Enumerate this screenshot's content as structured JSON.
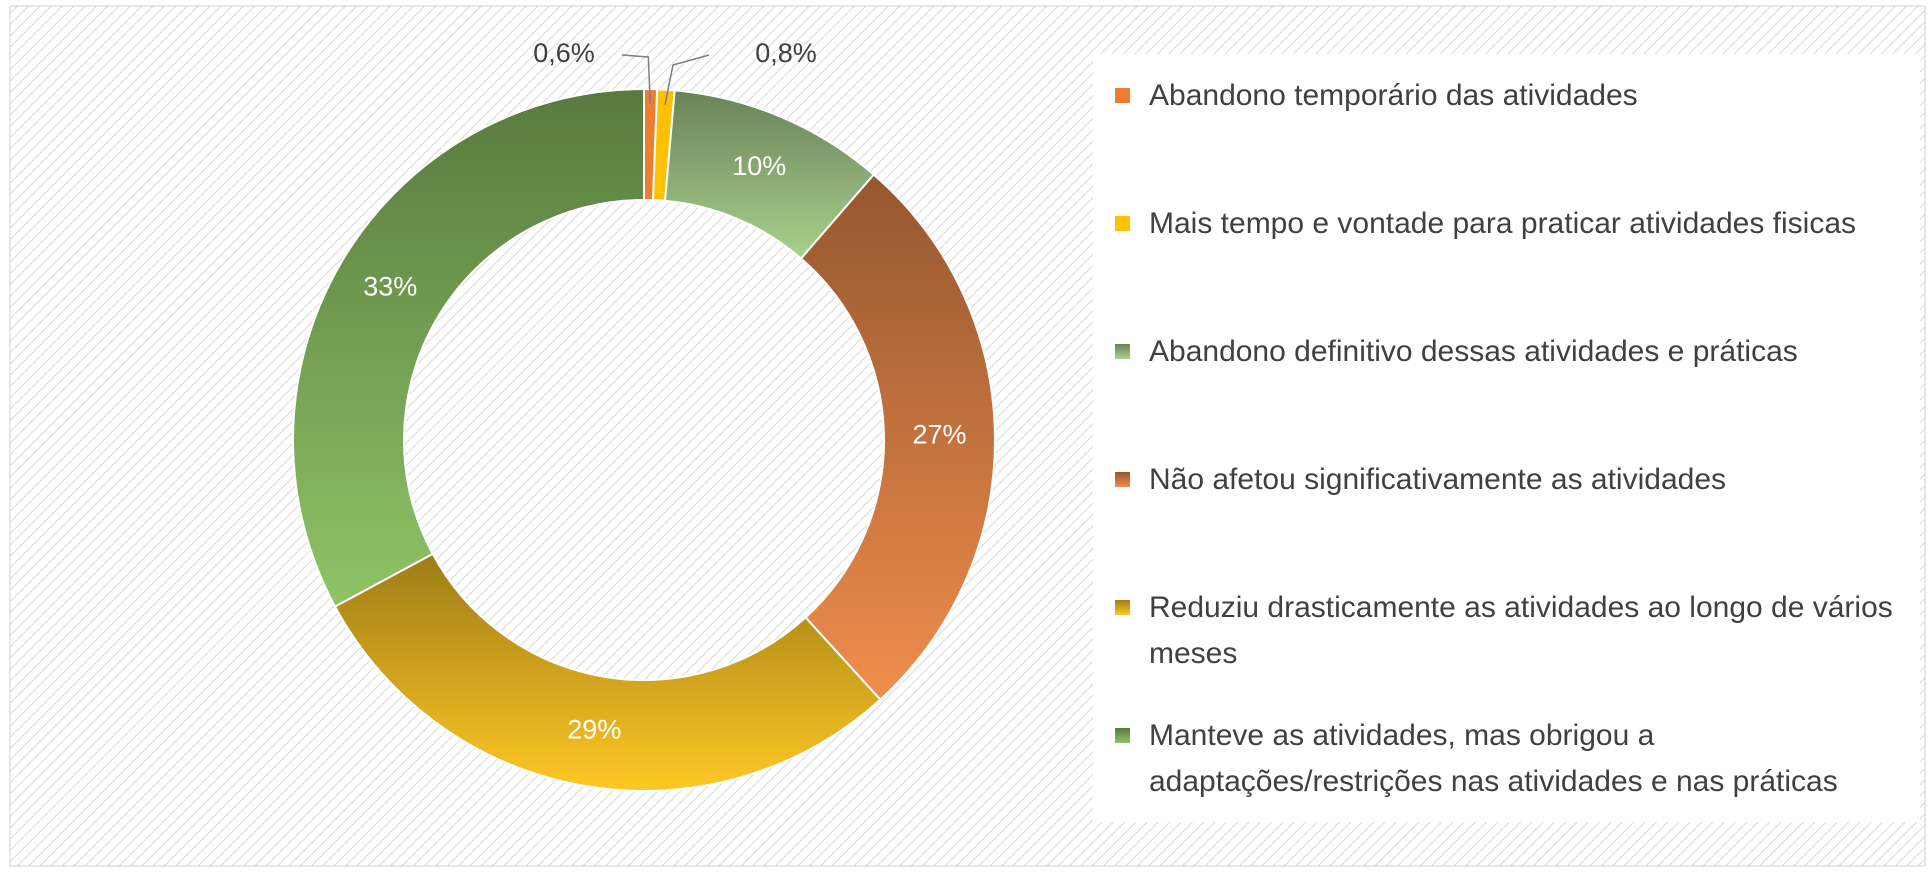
{
  "chart_data": {
    "type": "donut",
    "categories": [
      "Abandono temporário das atividades",
      "Mais tempo e vontade para praticar atividades fisicas",
      "Abandono definitivo dessas atividades e práticas",
      "Não afetou significativamente as atividades",
      "Reduziu drasticamente as atividades ao longo de vários meses",
      "Manteve as atividades, mas obrigou a adaptações/restrições nas atividades e nas práticas"
    ],
    "values": [
      0.6,
      0.8,
      10,
      27,
      29,
      33
    ],
    "value_labels": [
      "0,6%",
      "0,8%",
      "10%",
      "27%",
      "29%",
      "33%"
    ],
    "colors": [
      "#ED7D31",
      "#FFC000",
      "#A9D18E",
      "#F08D4C",
      "#FFC825",
      "#8FC466"
    ],
    "legend": "right"
  }
}
